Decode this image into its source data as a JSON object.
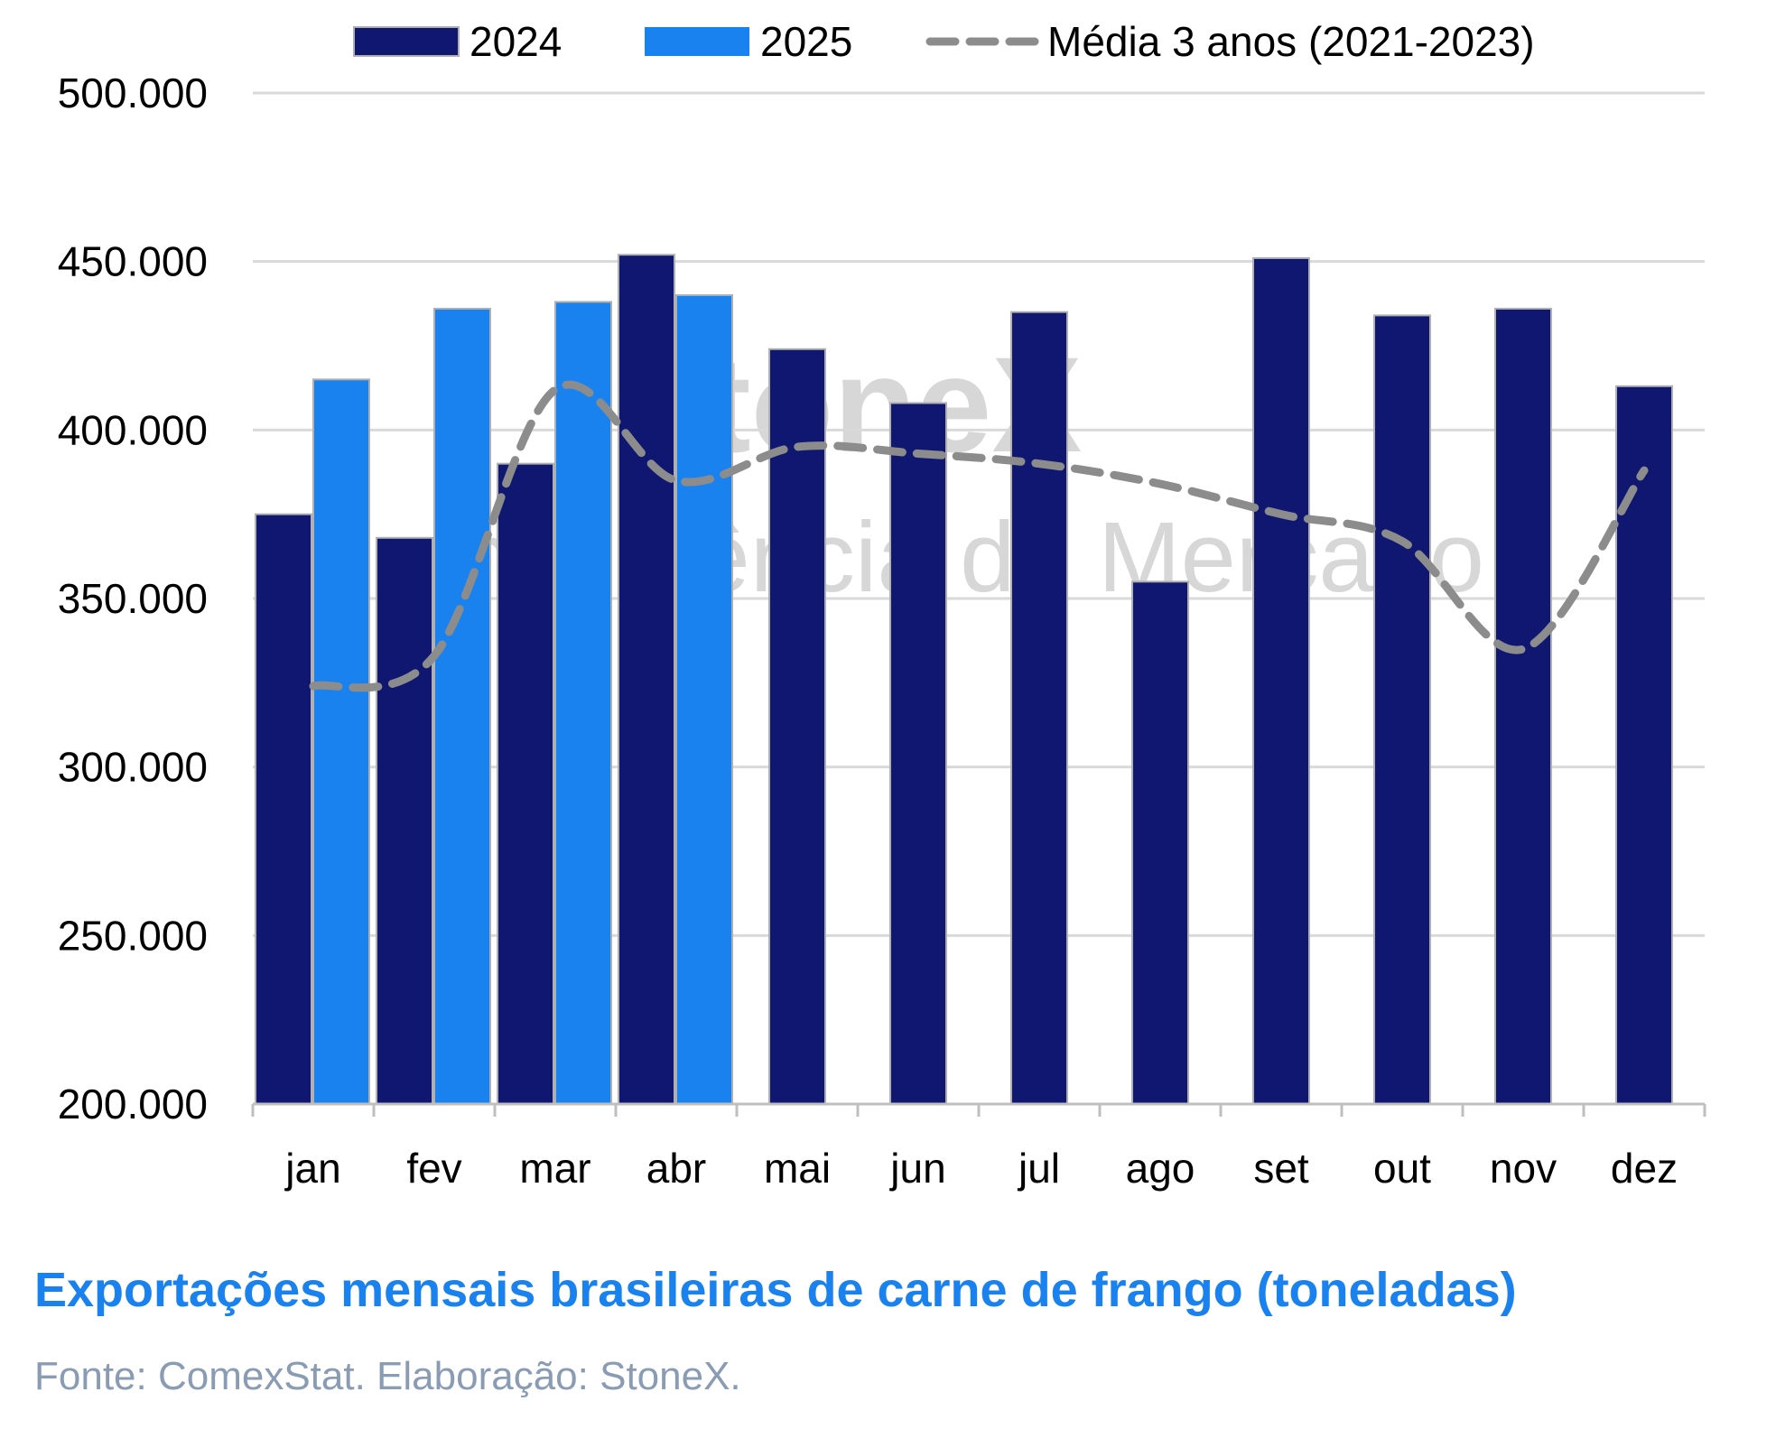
{
  "chart_data": {
    "type": "bar",
    "title": "Exportações mensais brasileiras de carne de frango (toneladas)",
    "source": "Fonte: ComexStat. Elaboração: StoneX.",
    "categories": [
      "jan",
      "fev",
      "mar",
      "abr",
      "mai",
      "jun",
      "jul",
      "ago",
      "set",
      "out",
      "nov",
      "dez"
    ],
    "series": [
      {
        "name": "2024",
        "type": "bar",
        "color": "#0f1770",
        "values": [
          375000,
          368000,
          390000,
          452000,
          424000,
          408000,
          435000,
          355000,
          451000,
          434000,
          436000,
          413000
        ]
      },
      {
        "name": "2025",
        "type": "bar",
        "color": "#1a82ef",
        "values": [
          415000,
          436000,
          438000,
          440000,
          null,
          null,
          null,
          null,
          null,
          null,
          null,
          null
        ]
      },
      {
        "name": "Média 3 anos (2021-2023)",
        "type": "line",
        "style": "dashed",
        "color": "#8c8c8c",
        "values": [
          324000,
          333000,
          412000,
          385000,
          395000,
          393000,
          390000,
          384000,
          375000,
          367000,
          335000,
          388000
        ]
      }
    ],
    "ylim": [
      200000,
      500000
    ],
    "yticks": [
      "200.000",
      "250.000",
      "300.000",
      "350.000",
      "400.000",
      "450.000",
      "500.000"
    ],
    "grid": true,
    "legend_position": "top",
    "watermark": "StoneX Inteligência de Mercado"
  }
}
